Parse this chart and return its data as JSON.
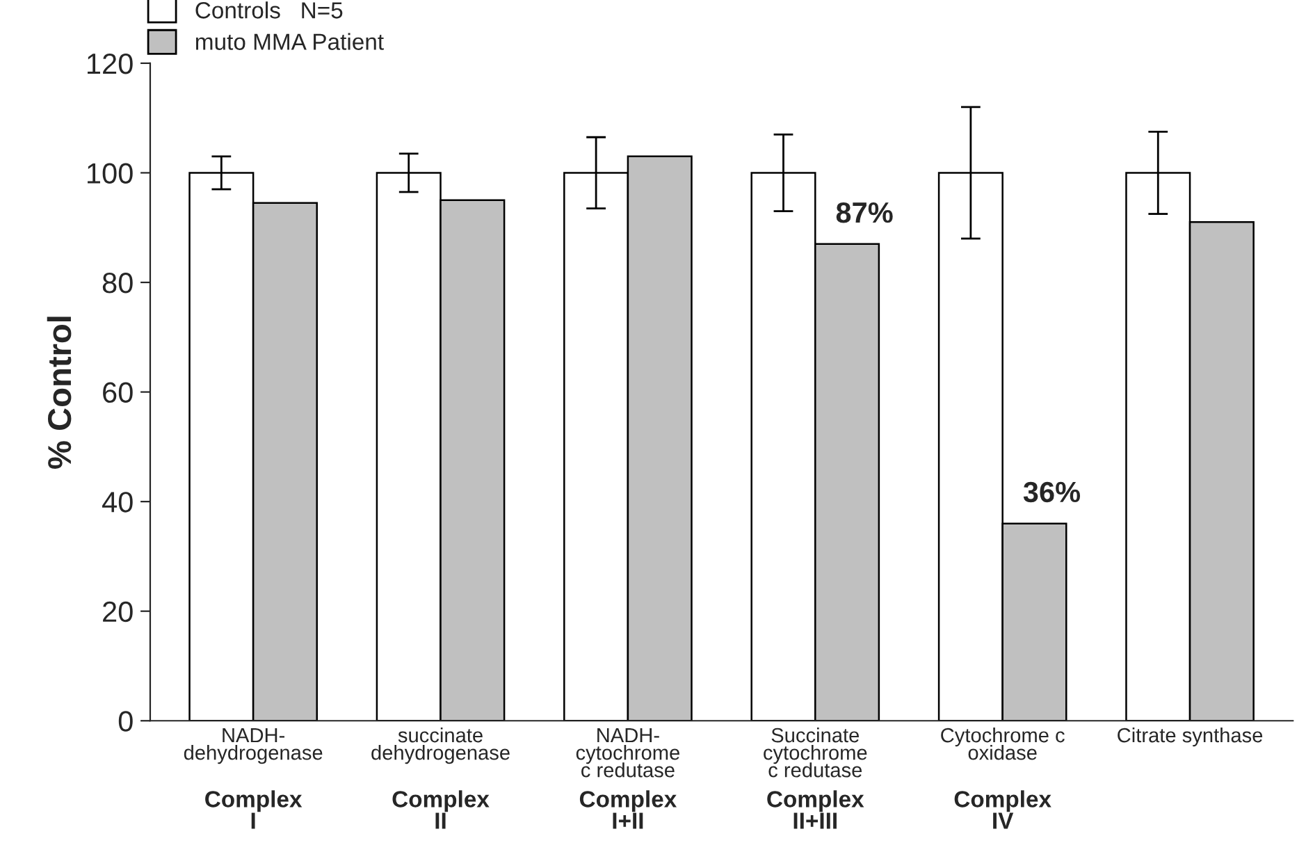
{
  "chart_data": {
    "type": "bar",
    "categories": [
      "NADH-\ndehydrogenase",
      "succinate\ndehydrogenase",
      "NADH-\ncytochrome\nc redutase",
      "Succinate\ncytochrome\nc redutase",
      "Cytochrome c\noxidase",
      "Citrate synthase"
    ],
    "series": [
      {
        "name": "Controls   N=5",
        "color": "#ffffff",
        "values": [
          100,
          100,
          100,
          100,
          100,
          100
        ],
        "errors": [
          3,
          3.5,
          6.5,
          7,
          12,
          7.5
        ]
      },
      {
        "name": "muto MMA Patient",
        "color": "#c0c0c0",
        "values": [
          94.5,
          95,
          103,
          87,
          36,
          91
        ],
        "value_labels": [
          null,
          null,
          null,
          "87%",
          "36%",
          null
        ]
      }
    ],
    "ylabel": "% Control",
    "ylim": [
      0,
      120
    ],
    "yticks": [
      0,
      20,
      40,
      60,
      80,
      100,
      120
    ],
    "annotations": [
      "Complex\nI",
      "Complex\nII",
      "Complex\nI+II",
      "Complex\nII+III",
      "Complex\nIV"
    ],
    "legend": "top left",
    "grid": false
  }
}
